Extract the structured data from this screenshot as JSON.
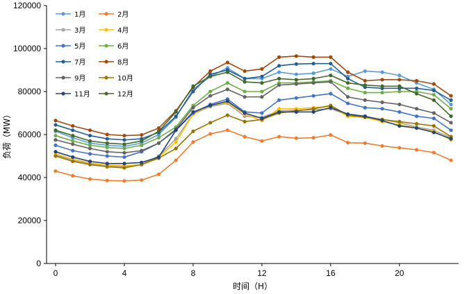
{
  "chart_data": {
    "type": "line",
    "xlabel": "时间（H）",
    "ylabel": "负荷（MW）",
    "xlim": [
      0,
      23
    ],
    "ylim": [
      0,
      120000
    ],
    "xticks": [
      0,
      4,
      8,
      12,
      16,
      20
    ],
    "yticks": [
      0,
      20000,
      40000,
      60000,
      80000,
      100000,
      120000
    ],
    "legend_position": "top-left",
    "x": [
      0,
      1,
      2,
      3,
      4,
      5,
      6,
      7,
      8,
      9,
      10,
      11,
      12,
      13,
      14,
      15,
      16,
      17,
      18,
      19,
      20,
      21,
      22,
      23
    ],
    "series": [
      {
        "name": "1月",
        "color": "#5b9bd5",
        "values": [
          61500,
          58500,
          56000,
          55000,
          54500,
          56000,
          60000,
          68000,
          81000,
          87000,
          91000,
          86000,
          86000,
          89000,
          88000,
          88500,
          90500,
          87000,
          89500,
          89000,
          87500,
          84000,
          81000,
          74000
        ]
      },
      {
        "name": "2月",
        "color": "#ed7d31",
        "values": [
          43000,
          40800,
          39300,
          38600,
          38400,
          38800,
          41500,
          48000,
          56500,
          60300,
          62000,
          59000,
          57000,
          59000,
          58300,
          58500,
          59800,
          56200,
          56000,
          54700,
          53800,
          52900,
          51600,
          48000
        ]
      },
      {
        "name": "3月",
        "color": "#a5a5a5",
        "values": [
          50500,
          48000,
          46500,
          45500,
          45000,
          46000,
          50000,
          58000,
          69500,
          73000,
          74500,
          68500,
          68000,
          71000,
          71300,
          71500,
          72000,
          69000,
          68500,
          67000,
          65500,
          63500,
          62000,
          58500
        ]
      },
      {
        "name": "4月",
        "color": "#ffc000",
        "values": [
          51000,
          48500,
          46800,
          45800,
          45500,
          46000,
          49500,
          56500,
          69500,
          73500,
          75000,
          69500,
          66500,
          72000,
          72000,
          72500,
          73000,
          68500,
          68000,
          66000,
          64500,
          63000,
          61500,
          57500
        ]
      },
      {
        "name": "5月",
        "color": "#4472c4",
        "values": [
          55000,
          52500,
          51000,
          50000,
          49500,
          52000,
          56000,
          62000,
          70000,
          74000,
          76500,
          70500,
          70000,
          76000,
          77000,
          78000,
          79000,
          74500,
          72500,
          72000,
          70500,
          68500,
          67500,
          62000
        ]
      },
      {
        "name": "6月",
        "color": "#70ad47",
        "values": [
          59500,
          57000,
          55000,
          54000,
          53500,
          55000,
          58500,
          63500,
          73500,
          80000,
          84000,
          80000,
          80000,
          84000,
          84000,
          84500,
          85000,
          81500,
          79500,
          79500,
          80000,
          80000,
          78500,
          72000
        ]
      },
      {
        "name": "7月",
        "color": "#255e91",
        "values": [
          64500,
          62000,
          59500,
          58000,
          57500,
          58000,
          61000,
          68500,
          80000,
          88000,
          90000,
          86000,
          87000,
          92000,
          92800,
          93000,
          93000,
          86000,
          82000,
          81500,
          81500,
          81500,
          80500,
          76000
        ]
      },
      {
        "name": "8月",
        "color": "#9e480e",
        "values": [
          66500,
          64000,
          62000,
          60000,
          59500,
          59800,
          63000,
          71000,
          82000,
          89500,
          93500,
          89500,
          90500,
          96000,
          96500,
          96000,
          96000,
          89000,
          85000,
          85500,
          85500,
          85000,
          83500,
          78000
        ]
      },
      {
        "name": "9月",
        "color": "#636363",
        "values": [
          57500,
          55500,
          53500,
          52000,
          51500,
          52500,
          56000,
          62500,
          72500,
          78000,
          81000,
          77500,
          77500,
          83000,
          83500,
          84000,
          84500,
          77500,
          76000,
          75000,
          74000,
          72000,
          70000,
          65500
        ]
      },
      {
        "name": "10月",
        "color": "#997300",
        "values": [
          50000,
          47500,
          46000,
          45000,
          44500,
          46000,
          49000,
          53500,
          61500,
          65500,
          69000,
          66000,
          67000,
          70000,
          71000,
          72000,
          73500,
          69000,
          68000,
          67000,
          66000,
          65000,
          64000,
          59000
        ]
      },
      {
        "name": "11月",
        "color": "#264478",
        "values": [
          52000,
          49500,
          47500,
          46500,
          46500,
          47000,
          49500,
          62000,
          70500,
          73500,
          75500,
          70000,
          67500,
          70500,
          70500,
          70500,
          72500,
          69500,
          68500,
          66500,
          64000,
          63000,
          61000,
          58000
        ]
      },
      {
        "name": "12月",
        "color": "#43682b",
        "values": [
          62000,
          59500,
          57000,
          56000,
          55500,
          57000,
          61500,
          70500,
          82500,
          87000,
          89000,
          84500,
          84000,
          86000,
          85500,
          86000,
          87500,
          84000,
          83000,
          82500,
          82500,
          79000,
          76000,
          68500
        ]
      }
    ]
  }
}
